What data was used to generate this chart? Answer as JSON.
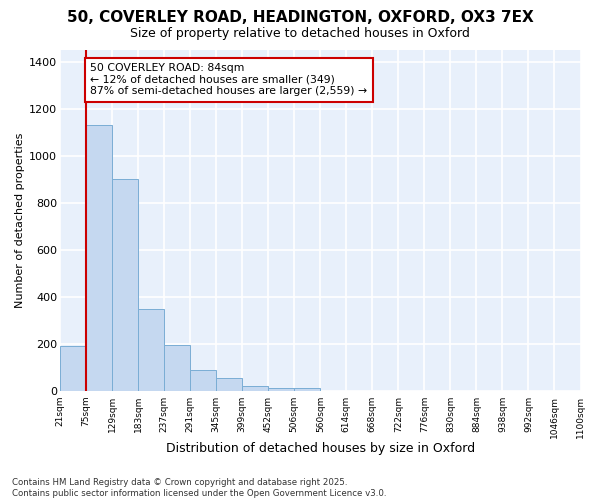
{
  "title_line1": "50, COVERLEY ROAD, HEADINGTON, OXFORD, OX3 7EX",
  "title_line2": "Size of property relative to detached houses in Oxford",
  "xlabel": "Distribution of detached houses by size in Oxford",
  "ylabel": "Number of detached properties",
  "bins": [
    "21sqm",
    "75sqm",
    "129sqm",
    "183sqm",
    "237sqm",
    "291sqm",
    "345sqm",
    "399sqm",
    "452sqm",
    "506sqm",
    "560sqm",
    "614sqm",
    "668sqm",
    "722sqm",
    "776sqm",
    "830sqm",
    "884sqm",
    "938sqm",
    "992sqm",
    "1046sqm",
    "1100sqm"
  ],
  "values": [
    190,
    1130,
    900,
    350,
    195,
    90,
    55,
    20,
    10,
    10,
    0,
    0,
    0,
    0,
    0,
    0,
    0,
    0,
    0,
    0
  ],
  "bar_color": "#c5d8f0",
  "bar_edge_color": "#7aadd4",
  "vline_x_bin": 1,
  "vline_color": "#cc0000",
  "annotation_text": "50 COVERLEY ROAD: 84sqm\n← 12% of detached houses are smaller (349)\n87% of semi-detached houses are larger (2,559) →",
  "annotation_box_color": "white",
  "annotation_box_edge": "#cc0000",
  "background_color": "#e8f0fb",
  "grid_color": "white",
  "footnote": "Contains HM Land Registry data © Crown copyright and database right 2025.\nContains public sector information licensed under the Open Government Licence v3.0.",
  "ylim": [
    0,
    1450
  ],
  "yticks": [
    0,
    200,
    400,
    600,
    800,
    1000,
    1200,
    1400
  ],
  "title_fontsize": 11,
  "subtitle_fontsize": 9,
  "xlabel_fontsize": 9,
  "ylabel_fontsize": 8
}
